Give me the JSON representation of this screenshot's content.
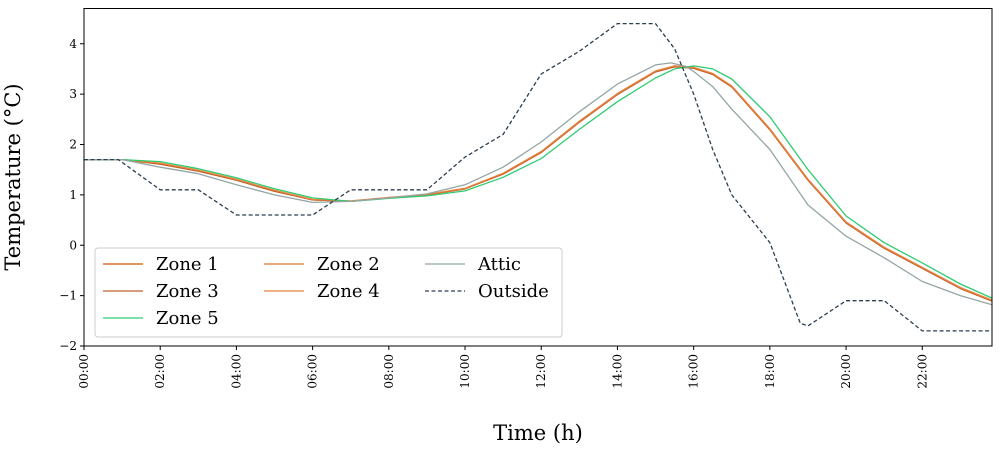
{
  "chart_data": {
    "type": "line",
    "xlabel": "Time (h)",
    "ylabel": "Temperature (°C)",
    "xlim": [
      0,
      23.83
    ],
    "ylim": [
      -2,
      4.7
    ],
    "grid": false,
    "legend_placement": "lower-left",
    "x_ticks": [
      {
        "value": 0,
        "label": "00:00"
      },
      {
        "value": 2,
        "label": "02:00"
      },
      {
        "value": 4,
        "label": "04:00"
      },
      {
        "value": 6,
        "label": "06:00"
      },
      {
        "value": 8,
        "label": "08:00"
      },
      {
        "value": 10,
        "label": "10:00"
      },
      {
        "value": 12,
        "label": "12:00"
      },
      {
        "value": 14,
        "label": "14:00"
      },
      {
        "value": 16,
        "label": "16:00"
      },
      {
        "value": 18,
        "label": "18:00"
      },
      {
        "value": 20,
        "label": "20:00"
      },
      {
        "value": 22,
        "label": "22:00"
      }
    ],
    "y_ticks": [
      {
        "value": -2,
        "label": "−2"
      },
      {
        "value": -1,
        "label": "−1"
      },
      {
        "value": 0,
        "label": "0"
      },
      {
        "value": 1,
        "label": "1"
      },
      {
        "value": 2,
        "label": "2"
      },
      {
        "value": 3,
        "label": "3"
      },
      {
        "value": 4,
        "label": "4"
      }
    ],
    "series": [
      {
        "name": "Zone 1",
        "color": "#d35400",
        "dash": "solid",
        "x": [
          0,
          1,
          2,
          3,
          4,
          5,
          6,
          7,
          8,
          9,
          10,
          11,
          12,
          13,
          14,
          15,
          15.5,
          16,
          16.5,
          17,
          18,
          19,
          20,
          21,
          22,
          23,
          23.83
        ],
        "y": [
          1.7,
          1.7,
          1.62,
          1.48,
          1.3,
          1.08,
          0.9,
          0.87,
          0.94,
          1.0,
          1.12,
          1.42,
          1.85,
          2.45,
          3.0,
          3.45,
          3.55,
          3.52,
          3.4,
          3.15,
          2.3,
          1.3,
          0.45,
          -0.05,
          -0.45,
          -0.85,
          -1.1
        ]
      },
      {
        "name": "Zone 2",
        "color": "#e07b39",
        "dash": "solid",
        "x": [
          0,
          1,
          2,
          3,
          4,
          5,
          6,
          7,
          8,
          9,
          10,
          11,
          12,
          13,
          14,
          15,
          15.5,
          16,
          16.5,
          17,
          18,
          19,
          20,
          21,
          22,
          23,
          23.83
        ],
        "y": [
          1.7,
          1.7,
          1.62,
          1.48,
          1.3,
          1.08,
          0.9,
          0.87,
          0.94,
          1.0,
          1.12,
          1.42,
          1.86,
          2.46,
          3.01,
          3.46,
          3.56,
          3.53,
          3.41,
          3.16,
          2.31,
          1.31,
          0.46,
          -0.04,
          -0.44,
          -0.84,
          -1.09
        ]
      },
      {
        "name": "Zone 3",
        "color": "#c0622a",
        "dash": "solid",
        "x": [
          0,
          1,
          2,
          3,
          4,
          5,
          6,
          7,
          8,
          9,
          10,
          11,
          12,
          13,
          14,
          15,
          15.5,
          16,
          16.5,
          17,
          18,
          19,
          20,
          21,
          22,
          23,
          23.83
        ],
        "y": [
          1.7,
          1.7,
          1.61,
          1.47,
          1.29,
          1.07,
          0.9,
          0.87,
          0.94,
          1.0,
          1.12,
          1.41,
          1.84,
          2.44,
          2.99,
          3.44,
          3.54,
          3.51,
          3.39,
          3.14,
          2.29,
          1.29,
          0.44,
          -0.06,
          -0.46,
          -0.86,
          -1.11
        ]
      },
      {
        "name": "Zone 4",
        "color": "#e8843f",
        "dash": "solid",
        "x": [
          0,
          1,
          2,
          3,
          4,
          5,
          6,
          7,
          8,
          9,
          10,
          11,
          12,
          13,
          14,
          15,
          15.5,
          16,
          16.5,
          17,
          18,
          19,
          20,
          21,
          22,
          23,
          23.83
        ],
        "y": [
          1.7,
          1.7,
          1.63,
          1.49,
          1.31,
          1.09,
          0.91,
          0.88,
          0.95,
          1.01,
          1.13,
          1.43,
          1.86,
          2.46,
          3.01,
          3.46,
          3.56,
          3.53,
          3.41,
          3.16,
          2.31,
          1.31,
          0.46,
          -0.04,
          -0.44,
          -0.84,
          -1.09
        ]
      },
      {
        "name": "Zone 5",
        "color": "#2ecc71",
        "dash": "solid",
        "x": [
          0,
          1,
          2,
          3,
          4,
          5,
          6,
          7,
          8,
          9,
          10,
          11,
          12,
          13,
          14,
          15,
          15.5,
          16,
          16.5,
          17,
          18,
          19,
          20,
          21,
          22,
          23,
          23.83
        ],
        "y": [
          1.7,
          1.7,
          1.66,
          1.52,
          1.34,
          1.12,
          0.94,
          0.87,
          0.93,
          0.98,
          1.08,
          1.35,
          1.72,
          2.3,
          2.85,
          3.32,
          3.5,
          3.56,
          3.5,
          3.3,
          2.55,
          1.5,
          0.58,
          0.05,
          -0.35,
          -0.77,
          -1.05
        ]
      },
      {
        "name": "Attic",
        "color": "#95a5a6",
        "dash": "solid",
        "x": [
          0,
          1,
          2,
          3,
          4,
          5,
          6,
          7,
          8,
          9,
          10,
          11,
          12,
          13,
          14,
          15,
          15.4,
          15.8,
          16,
          16.5,
          17,
          18,
          19,
          20,
          21,
          22,
          23,
          23.83
        ],
        "y": [
          1.7,
          1.7,
          1.55,
          1.42,
          1.2,
          1.0,
          0.85,
          0.87,
          0.94,
          1.02,
          1.2,
          1.55,
          2.05,
          2.65,
          3.2,
          3.58,
          3.62,
          3.55,
          3.45,
          3.15,
          2.7,
          1.9,
          0.8,
          0.18,
          -0.25,
          -0.72,
          -1.0,
          -1.18
        ]
      },
      {
        "name": "Outside",
        "color": "#2c3e50",
        "dash": "dashed",
        "x": [
          0,
          0.9,
          2,
          3,
          4,
          6,
          7,
          8,
          9,
          10,
          11,
          12,
          13,
          14,
          15,
          15.5,
          16,
          16.5,
          17,
          18,
          18.8,
          19,
          20,
          21,
          22,
          23.83
        ],
        "y": [
          1.7,
          1.7,
          1.1,
          1.1,
          0.6,
          0.6,
          1.1,
          1.1,
          1.1,
          1.75,
          2.2,
          3.4,
          3.85,
          4.4,
          4.4,
          3.9,
          3.0,
          1.9,
          1.0,
          0.05,
          -1.55,
          -1.6,
          -1.1,
          -1.1,
          -1.7,
          -1.7
        ]
      }
    ],
    "legend": [
      {
        "label": "Zone 1",
        "series": 0
      },
      {
        "label": "Zone 3",
        "series": 2
      },
      {
        "label": "Zone 5",
        "series": 4
      },
      {
        "label": "Zone 2",
        "series": 1
      },
      {
        "label": "Zone 4",
        "series": 3
      },
      {
        "label": "Attic",
        "series": 5
      },
      {
        "label": "Outside",
        "series": 6
      }
    ]
  }
}
